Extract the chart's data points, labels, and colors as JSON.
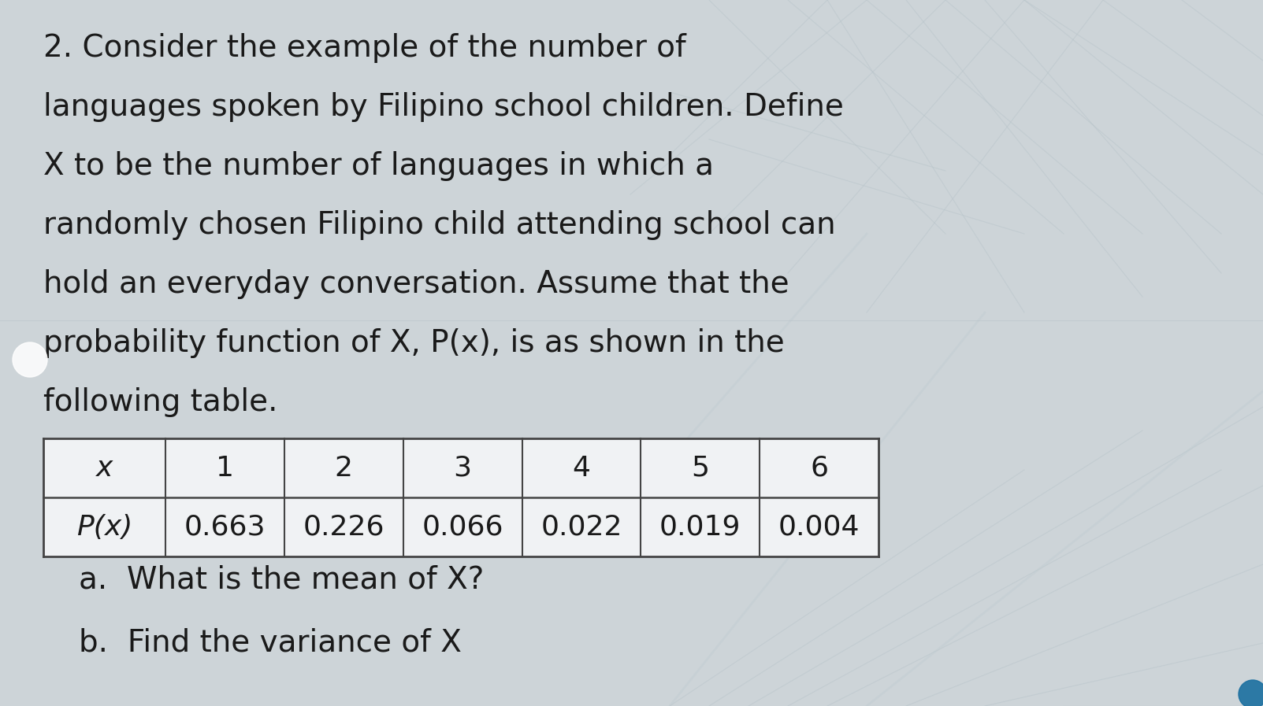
{
  "title_lines": [
    "2. Consider the example of the number of",
    "languages spoken by Filipino school children. Define",
    "X to be the number of languages in which a",
    "randomly chosen Filipino child attending school can",
    "hold an everyday conversation. Assume that the",
    "probability function of X, P(x), is as shown in the",
    "following table."
  ],
  "table_headers": [
    "x",
    "1",
    "2",
    "3",
    "4",
    "5",
    "6"
  ],
  "table_row_label": "P(x)",
  "table_values": [
    "0.663",
    "0.226",
    "0.066",
    "0.022",
    "0.019",
    "0.004"
  ],
  "question_a": "a.  What is the mean of X?",
  "question_b": "b.  Find the variance of X",
  "bg_color": "#cdd4d8",
  "text_color": "#1a1a1a",
  "table_bg": "#f0f2f4",
  "title_fontsize": 28,
  "table_fontsize": 26,
  "question_fontsize": 28
}
